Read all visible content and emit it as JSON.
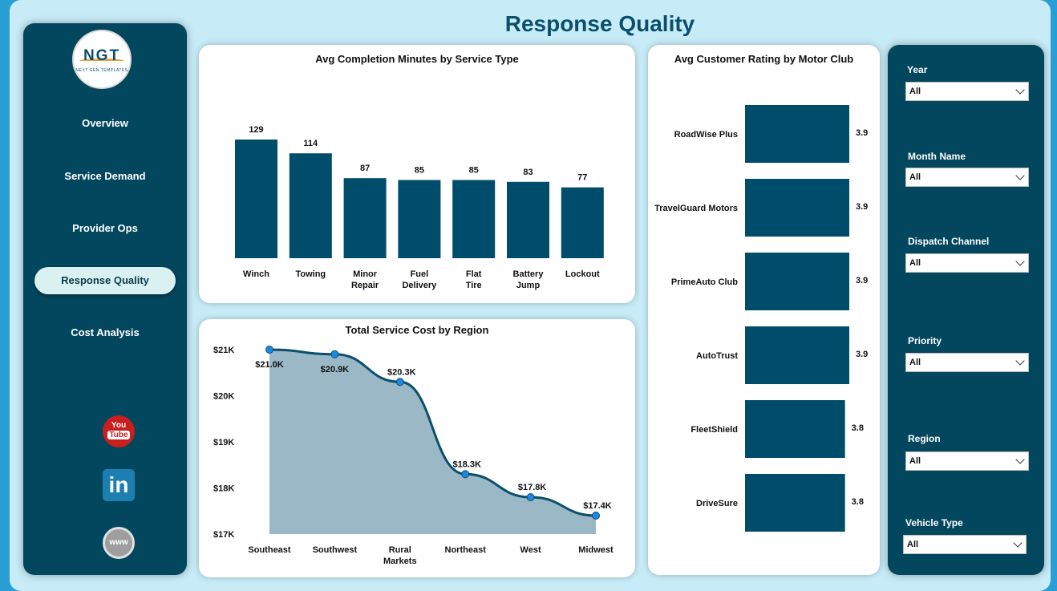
{
  "page": {
    "title": "Response Quality"
  },
  "logo": {
    "mark": "NGT",
    "subtitle": "NEXT GEN TEMPLATES"
  },
  "nav": {
    "items": [
      {
        "label": "Overview",
        "active": false
      },
      {
        "label": "Service Demand",
        "active": false
      },
      {
        "label": "Provider Ops",
        "active": false
      },
      {
        "label": "Response Quality",
        "active": true
      },
      {
        "label": "Cost Analysis",
        "active": false
      }
    ]
  },
  "social": {
    "youtube_you": "You",
    "youtube_tube": "Tube",
    "linkedin": "in",
    "web": "www"
  },
  "filters": [
    {
      "label": "Year",
      "value": "All"
    },
    {
      "label": "Month Name",
      "value": "All"
    },
    {
      "label": "Dispatch Channel",
      "value": "All"
    },
    {
      "label": "Priority",
      "value": "All"
    },
    {
      "label": "Region",
      "value": "All"
    },
    {
      "label": "Vehicle Type",
      "value": "All"
    }
  ],
  "colors": {
    "bar": "#004c6b",
    "area": "#9ab8c6",
    "line": "#0b4f6c",
    "marker": "#1e88e5"
  },
  "chart_data": [
    {
      "type": "bar",
      "title": "Avg Completion Minutes by Service Type",
      "categories": [
        "Winch",
        "Towing",
        "Minor Repair",
        "Fuel Delivery",
        "Flat Tire",
        "Battery Jump",
        "Lockout"
      ],
      "values": [
        129,
        114,
        87,
        85,
        85,
        83,
        77
      ],
      "data_labels": [
        "129",
        "114",
        "87",
        "85",
        "85",
        "83",
        "77"
      ],
      "ylim": [
        0,
        129
      ]
    },
    {
      "type": "area",
      "title": "Total Service Cost by Region",
      "categories": [
        "Southeast",
        "Southwest",
        "Rural Markets",
        "Northeast",
        "West",
        "Midwest"
      ],
      "values": [
        21.0,
        20.9,
        20.3,
        18.3,
        17.8,
        17.4
      ],
      "data_labels": [
        "$21.0K",
        "$20.9K",
        "$20.3K",
        "$18.3K",
        "$17.8K",
        "$17.4K"
      ],
      "yticks": [
        "$21K",
        "$20K",
        "$19K",
        "$18K",
        "$17K"
      ],
      "ylim": [
        17,
        21
      ],
      "unit": "$K"
    },
    {
      "type": "bar",
      "orientation": "horizontal",
      "title": "Avg Customer Rating by Motor Club",
      "categories": [
        "RoadWise Plus",
        "TravelGuard Motors",
        "PrimeAuto Club",
        "AutoTrust",
        "FleetShield",
        "DriveSure"
      ],
      "values": [
        3.9,
        3.9,
        3.9,
        3.9,
        3.8,
        3.8
      ],
      "data_labels": [
        "3.9",
        "3.9",
        "3.9",
        "3.9",
        "3.8",
        "3.8"
      ]
    }
  ]
}
